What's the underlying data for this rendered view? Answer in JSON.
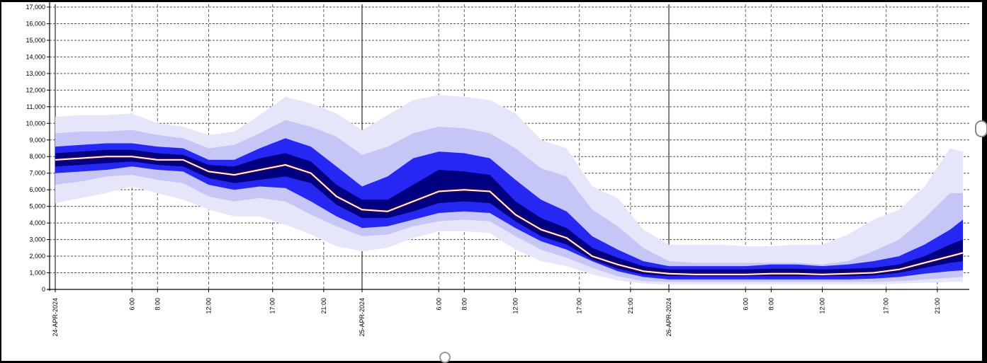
{
  "chart_data": {
    "type": "area",
    "title": "",
    "xlabel": "",
    "ylabel": "",
    "ylim": [
      0,
      17000
    ],
    "y_ticks": [
      "0",
      "1,000",
      "2,000",
      "3,000",
      "4,000",
      "5,000",
      "6,000",
      "7,000",
      "8,000",
      "9,000",
      "10,000",
      "11,000",
      "12,000",
      "13,000",
      "14,000",
      "15,000",
      "16,000",
      "17,000"
    ],
    "x_ticks": [
      {
        "hour": 0,
        "label": "24-APR-2024",
        "major": true
      },
      {
        "hour": 6,
        "label": "6:00"
      },
      {
        "hour": 8,
        "label": "8:00"
      },
      {
        "hour": 12,
        "label": "12:00"
      },
      {
        "hour": 17,
        "label": "17:00"
      },
      {
        "hour": 21,
        "label": "21:00"
      },
      {
        "hour": 24,
        "label": "25-APR-2024",
        "major": true
      },
      {
        "hour": 30,
        "label": "6:00"
      },
      {
        "hour": 32,
        "label": "8:00"
      },
      {
        "hour": 36,
        "label": "12:00"
      },
      {
        "hour": 41,
        "label": "17:00"
      },
      {
        "hour": 45,
        "label": "21:00"
      },
      {
        "hour": 48,
        "label": "26-APR-2024",
        "major": true
      },
      {
        "hour": 54,
        "label": "6:00"
      },
      {
        "hour": 56,
        "label": "8:00"
      },
      {
        "hour": 60,
        "label": "12:00"
      },
      {
        "hour": 65,
        "label": "17:00"
      },
      {
        "hour": 69,
        "label": "21:00"
      }
    ],
    "grid": true,
    "x": [
      0,
      2,
      4,
      6,
      8,
      10,
      12,
      14,
      16,
      18,
      20,
      22,
      24,
      26,
      28,
      30,
      32,
      34,
      36,
      38,
      40,
      42,
      44,
      46,
      48,
      50,
      52,
      54,
      56,
      58,
      60,
      62,
      64,
      66,
      68,
      70,
      71
    ],
    "median": [
      7800,
      7900,
      8000,
      8000,
      7800,
      7800,
      7100,
      6900,
      7200,
      7500,
      7000,
      5600,
      4800,
      4700,
      5300,
      5900,
      6000,
      5900,
      4500,
      3600,
      3100,
      2000,
      1500,
      1100,
      950,
      900,
      900,
      900,
      950,
      950,
      900,
      950,
      1000,
      1200,
      1600,
      2000,
      2200
    ],
    "bands": [
      {
        "name": "outer",
        "color": "#e6e6fa",
        "low": [
          5200,
          5500,
          5800,
          6200,
          5800,
          5400,
          4800,
          4400,
          4400,
          3900,
          3300,
          2600,
          2300,
          2500,
          3100,
          3500,
          3500,
          3400,
          2400,
          1700,
          1400,
          900,
          550,
          350,
          300,
          300,
          300,
          300,
          300,
          300,
          300,
          300,
          300,
          350,
          400,
          450,
          450
        ],
        "high": [
          10400,
          10500,
          10500,
          10600,
          10000,
          9800,
          9300,
          9500,
          10500,
          11600,
          11200,
          10600,
          9600,
          10500,
          11400,
          11700,
          11600,
          11400,
          10600,
          9000,
          8500,
          6200,
          5500,
          3600,
          2700,
          2700,
          2700,
          2600,
          2600,
          2700,
          2700,
          3300,
          4200,
          4800,
          6200,
          8500,
          8300
        ]
      },
      {
        "name": "second",
        "color": "#c5c5f6",
        "low": [
          6300,
          6500,
          6800,
          6900,
          6600,
          6400,
          5600,
          5300,
          5500,
          5300,
          4500,
          3800,
          3200,
          3300,
          3800,
          4100,
          4200,
          4100,
          3200,
          2400,
          1900,
          1300,
          800,
          500,
          450,
          450,
          450,
          450,
          450,
          450,
          450,
          450,
          450,
          500,
          600,
          700,
          750
        ],
        "high": [
          9400,
          9500,
          9500,
          9600,
          9300,
          9100,
          8500,
          8700,
          9400,
          10200,
          9800,
          9200,
          8100,
          8600,
          9400,
          9800,
          9700,
          9400,
          8500,
          7300,
          6800,
          4800,
          3800,
          2500,
          1700,
          1600,
          1600,
          1600,
          1600,
          1600,
          1500,
          1700,
          2300,
          3000,
          4300,
          5800,
          5800
        ]
      },
      {
        "name": "third",
        "color": "#2727f4",
        "low": [
          7000,
          7100,
          7200,
          7400,
          7200,
          7100,
          6300,
          6000,
          6200,
          6100,
          5300,
          4400,
          3700,
          3800,
          4200,
          4600,
          4700,
          4600,
          3700,
          2900,
          2400,
          1700,
          1100,
          750,
          600,
          600,
          600,
          600,
          600,
          600,
          600,
          600,
          650,
          750,
          950,
          1100,
          1150
        ],
        "high": [
          8600,
          8700,
          8800,
          8800,
          8600,
          8500,
          7800,
          7800,
          8500,
          9100,
          8600,
          7400,
          6200,
          6800,
          7900,
          8300,
          8200,
          7900,
          6600,
          5400,
          4700,
          3200,
          2400,
          1700,
          1400,
          1400,
          1400,
          1400,
          1500,
          1500,
          1400,
          1500,
          1700,
          2000,
          2700,
          3600,
          4200
        ]
      },
      {
        "name": "inner",
        "color": "#000080",
        "low": [
          7400,
          7500,
          7600,
          7700,
          7500,
          7400,
          6700,
          6400,
          6600,
          6800,
          6400,
          5100,
          4300,
          4300,
          4700,
          5200,
          5300,
          5200,
          4100,
          3200,
          2700,
          1800,
          1250,
          900,
          800,
          800,
          800,
          800,
          800,
          800,
          800,
          800,
          850,
          1000,
          1300,
          1600,
          1700
        ],
        "high": [
          8200,
          8300,
          8400,
          8400,
          8200,
          8100,
          7500,
          7400,
          7900,
          8200,
          7700,
          6300,
          5400,
          5400,
          6300,
          7200,
          7100,
          6900,
          5300,
          4300,
          3700,
          2500,
          1900,
          1400,
          1200,
          1200,
          1200,
          1200,
          1250,
          1250,
          1200,
          1250,
          1300,
          1500,
          2000,
          2700,
          3000
        ]
      }
    ],
    "median_color": "#ffffff"
  }
}
